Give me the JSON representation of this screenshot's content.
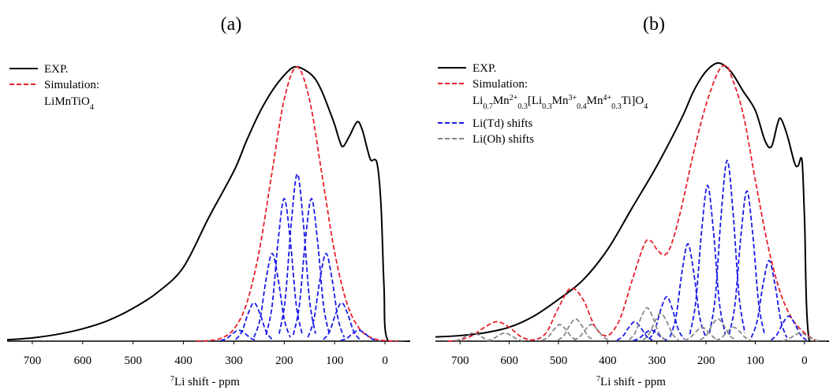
{
  "chart_data": [
    {
      "type": "line",
      "title": "(a)",
      "xlabel": [
        {
          "text": "7",
          "baseline": "super"
        },
        {
          "text": "Li shift - ppm"
        }
      ],
      "xlim": [
        750,
        -50
      ],
      "xticks": [
        700,
        600,
        500,
        400,
        300,
        200,
        100,
        0
      ],
      "ylim": [
        0,
        100
      ],
      "series": [
        {
          "name": "EXP.",
          "color": "#000000",
          "dashed": false,
          "x": [
            750,
            700,
            650,
            600,
            550,
            500,
            450,
            400,
            350,
            300,
            275,
            250,
            225,
            200,
            180,
            160,
            140,
            125,
            110,
            100,
            90,
            83,
            70,
            55,
            45,
            35,
            28,
            16,
            8,
            2,
            -5,
            -50
          ],
          "values": [
            0.5,
            1.2,
            2.5,
            4.5,
            7.5,
            12,
            18,
            27,
            45,
            62,
            73,
            83,
            91,
            97,
            100,
            99,
            96,
            91,
            84,
            79,
            73,
            71,
            75,
            80,
            77,
            70,
            66,
            65,
            50,
            20,
            0.5,
            0
          ]
        },
        {
          "name": "Simulation:",
          "note": [
            {
              "text": "LiMnTiO"
            },
            {
              "text": "4",
              "baseline": "sub"
            }
          ],
          "color": "#e8202a",
          "dashed": true,
          "x": [
            375,
            350,
            325,
            300,
            275,
            250,
            225,
            200,
            175,
            150,
            125,
            100,
            75,
            50,
            25,
            0,
            -25
          ],
          "values": [
            0,
            0.2,
            1.1,
            4.4,
            13.5,
            32.5,
            60.7,
            88.2,
            100,
            88.2,
            60.7,
            32.5,
            13.5,
            4.4,
            1.1,
            0.2,
            0
          ]
        },
        {
          "color": "#1a1ae6",
          "dashed": true,
          "curves": [
            {
              "x": [
                326,
                314,
                302,
                290,
                278,
                266,
                254
              ],
              "values": [
                0.2,
                1,
                2.8,
                4,
                2.8,
                1,
                0.2
              ]
            },
            {
              "x": [
                296,
                284,
                272,
                260,
                248,
                236,
                224
              ],
              "values": [
                0.6,
                3.5,
                9.9,
                14,
                9.9,
                3.5,
                0.6
              ]
            },
            {
              "x": [
                260,
                248,
                236,
                224,
                212,
                200,
                188
              ],
              "values": [
                1.4,
                8,
                22.6,
                32,
                22.6,
                8,
                1.4
              ]
            },
            {
              "x": [
                236,
                224,
                212,
                200,
                188,
                176,
                164
              ],
              "values": [
                2.3,
                13,
                36.8,
                52,
                36.8,
                13,
                2.3
              ]
            },
            {
              "x": [
                210,
                198,
                186,
                174,
                162,
                150,
                138
              ],
              "values": [
                2.7,
                15.3,
                43.1,
                61,
                43.1,
                15.3,
                2.7
              ]
            },
            {
              "x": [
                182,
                170,
                158,
                146,
                134,
                122,
                110
              ],
              "values": [
                2.3,
                13,
                36.8,
                52,
                36.8,
                13,
                2.3
              ]
            },
            {
              "x": [
                153,
                141,
                129,
                117,
                105,
                93,
                81
              ],
              "values": [
                1.4,
                8,
                22.6,
                32,
                22.6,
                8,
                1.4
              ]
            },
            {
              "x": [
                122,
                110,
                98,
                86,
                74,
                62,
                50
              ],
              "values": [
                0.6,
                3.5,
                9.9,
                14,
                9.9,
                3.5,
                0.6
              ]
            },
            {
              "x": [
                88,
                76,
                64,
                52,
                40,
                28,
                16
              ],
              "values": [
                0.2,
                1,
                2.8,
                4,
                2.8,
                1,
                0.2
              ]
            }
          ]
        }
      ]
    },
    {
      "type": "line",
      "title": "(b)",
      "xlabel": [
        {
          "text": "7",
          "baseline": "super"
        },
        {
          "text": "Li shift - ppm"
        }
      ],
      "xlim": [
        750,
        -50
      ],
      "xticks": [
        700,
        600,
        500,
        400,
        300,
        200,
        100,
        0
      ],
      "ylim": [
        0,
        100
      ],
      "series": [
        {
          "name": "EXP.",
          "color": "#000000",
          "dashed": false,
          "x": [
            750,
            700,
            650,
            600,
            550,
            500,
            450,
            400,
            350,
            300,
            250,
            225,
            200,
            175,
            150,
            125,
            100,
            80,
            67,
            55,
            48,
            35,
            20,
            13,
            5,
            0,
            -10,
            -50
          ],
          "values": [
            1.5,
            2,
            3,
            5,
            9,
            15,
            22,
            33,
            48,
            63,
            80,
            90,
            97,
            100,
            97,
            90,
            83,
            72,
            70,
            78,
            80,
            74,
            64,
            63,
            65,
            45,
            0,
            0
          ]
        },
        {
          "name": "Simulation:",
          "note": [
            {
              "text": "Li"
            },
            {
              "text": "0.7",
              "baseline": "sub"
            },
            {
              "text": "Mn"
            },
            {
              "text": "2+",
              "baseline": "super"
            },
            {
              "text": "0.3",
              "baseline": "sub"
            },
            {
              "text": "[Li"
            },
            {
              "text": "0.3",
              "baseline": "sub"
            },
            {
              "text": "Mn"
            },
            {
              "text": "3+",
              "baseline": "super"
            },
            {
              "text": "0.4",
              "baseline": "sub"
            },
            {
              "text": "Mn"
            },
            {
              "text": "4+",
              "baseline": "super"
            },
            {
              "text": "0.3",
              "baseline": "sub"
            },
            {
              "text": "Ti]O"
            },
            {
              "text": "4",
              "baseline": "sub"
            }
          ],
          "color": "#e8202a",
          "dashed": true,
          "x": [
            725,
            700,
            675,
            650,
            625,
            600,
            575,
            550,
            525,
            500,
            475,
            450,
            425,
            400,
            375,
            350,
            325,
            312,
            300,
            284,
            270,
            250,
            225,
            200,
            175,
            160,
            150,
            125,
            100,
            75,
            50,
            25,
            0,
            -25
          ],
          "values": [
            0,
            0.5,
            2,
            5,
            7,
            5,
            1.5,
            0.5,
            3,
            12,
            19,
            15,
            5,
            2,
            8,
            22,
            35,
            36,
            33,
            31,
            35,
            48,
            68,
            85,
            97,
            99,
            96,
            82,
            58,
            35,
            18,
            8,
            3,
            0
          ]
        },
        {
          "name": "Li(Td) shifts",
          "color": "#1a1ae6",
          "dashed": true,
          "curves": [
            {
              "x": [
                381,
                369,
                357,
                345,
                333,
                321,
                309
              ],
              "values": [
                0.3,
                1.8,
                4.9,
                7,
                4.9,
                1.8,
                0.3
              ]
            },
            {
              "x": [
                348,
                336,
                324,
                312,
                300,
                288,
                276
              ],
              "values": [
                0.2,
                1,
                2.8,
                4,
                2.8,
                1,
                0.2
              ]
            },
            {
              "x": [
                316,
                304,
                292,
                280,
                268,
                256,
                244
              ],
              "values": [
                0.7,
                4,
                11.3,
                16,
                11.3,
                4,
                0.7
              ]
            },
            {
              "x": [
                273,
                261,
                249,
                237,
                225,
                213,
                201
              ],
              "values": [
                1.5,
                8.8,
                24.7,
                35,
                24.7,
                8.8,
                1.5
              ]
            },
            {
              "x": [
                233,
                221,
                209,
                197,
                185,
                173,
                161
              ],
              "values": [
                2.5,
                14,
                39.6,
                56,
                39.6,
                14,
                2.5
              ]
            },
            {
              "x": [
                193,
                181,
                169,
                157,
                145,
                133,
                121
              ],
              "values": [
                2.9,
                16.3,
                46,
                65,
                46,
                16.3,
                2.9
              ]
            },
            {
              "x": [
                153,
                141,
                129,
                117,
                105,
                93,
                81
              ],
              "values": [
                2.4,
                13.5,
                38.2,
                54,
                38.2,
                13.5,
                2.4
              ]
            },
            {
              "x": [
                108,
                96,
                84,
                72,
                60,
                48,
                36
              ],
              "values": [
                1.3,
                7.3,
                20.5,
                29,
                20.5,
                7.3,
                1.3
              ]
            },
            {
              "x": [
                68,
                56,
                44,
                32,
                20,
                8,
                -4
              ],
              "values": [
                0.4,
                2.3,
                6.4,
                9,
                6.4,
                2.3,
                0.4
              ]
            }
          ]
        },
        {
          "name": "Li(Oh) shifts",
          "color": "#888888",
          "dashed": true,
          "curves": [
            {
              "x": [
                709,
                697,
                685,
                673,
                661,
                649,
                637
              ],
              "values": [
                0.1,
                0.8,
                2.1,
                3,
                2.1,
                0.8,
                0.1
              ]
            },
            {
              "x": [
                645,
                633,
                621,
                609,
                597,
                585,
                573
              ],
              "values": [
                0.1,
                0.8,
                2.1,
                3,
                2.1,
                0.8,
                0.1
              ]
            },
            {
              "x": [
                533,
                521,
                509,
                497,
                485,
                473,
                461
              ],
              "values": [
                0.3,
                1.5,
                4.2,
                6,
                4.2,
                1.5,
                0.3
              ]
            },
            {
              "x": [
                501,
                489,
                477,
                465,
                453,
                441,
                429
              ],
              "values": [
                0.4,
                2,
                5.7,
                8,
                5.7,
                2,
                0.4
              ]
            },
            {
              "x": [
                469,
                457,
                445,
                433,
                421,
                409,
                397
              ],
              "values": [
                0.3,
                1.5,
                4.2,
                6,
                4.2,
                1.5,
                0.3
              ]
            },
            {
              "x": [
                356,
                344,
                332,
                320,
                308,
                296,
                284
              ],
              "values": [
                0.5,
                3,
                8.5,
                12,
                8.5,
                3,
                0.5
              ]
            },
            {
              "x": [
                328,
                316,
                304,
                292,
                280,
                268,
                256
              ],
              "values": [
                0.4,
                2.5,
                7.1,
                10,
                7.1,
                2.5,
                0.4
              ]
            },
            {
              "x": [
                244,
                232,
                220,
                208,
                196,
                184,
                172
              ],
              "values": [
                0.2,
                1.3,
                3.5,
                5,
                3.5,
                1.3,
                0.2
              ]
            },
            {
              "x": [
                212,
                200,
                188,
                176,
                164,
                152,
                140
              ],
              "values": [
                0.4,
                2,
                5.7,
                8,
                5.7,
                2,
                0.4
              ]
            },
            {
              "x": [
                180,
                168,
                156,
                144,
                132,
                120,
                108
              ],
              "values": [
                0.2,
                1.3,
                3.5,
                5,
                3.5,
                1.3,
                0.2
              ]
            },
            {
              "x": [
                44,
                32,
                20,
                8,
                -4,
                -16,
                -28
              ],
              "values": [
                0.1,
                0.8,
                2.1,
                3,
                2.1,
                0.8,
                0.1
              ]
            }
          ]
        }
      ]
    }
  ]
}
